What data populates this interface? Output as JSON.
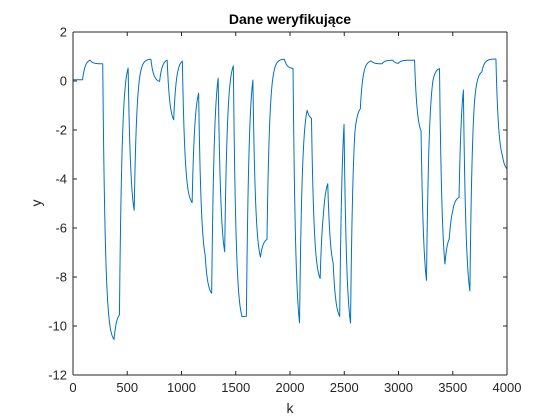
{
  "chart_data": {
    "type": "line",
    "title": "Dane weryfikujące",
    "xlabel": "k",
    "ylabel": "y",
    "xlim": [
      0,
      4000
    ],
    "ylim": [
      -12,
      2
    ],
    "xticks": [
      0,
      500,
      1000,
      1500,
      2000,
      2500,
      3000,
      3500,
      4000
    ],
    "yticks": [
      -12,
      -10,
      -8,
      -6,
      -4,
      -2,
      0,
      2
    ],
    "grid": false,
    "box": true,
    "series_color": "#0072BD",
    "settle_samples": 25,
    "series": [
      {
        "segments": [
          {
            "start": 0,
            "end": 90,
            "value": 0.05
          },
          {
            "start": 90,
            "end": 160,
            "value": 0.9
          },
          {
            "start": 160,
            "end": 275,
            "value": 0.7
          },
          {
            "start": 275,
            "end": 380,
            "value": -10.7
          },
          {
            "start": 380,
            "end": 430,
            "value": -9.4
          },
          {
            "start": 430,
            "end": 510,
            "value": 0.9
          },
          {
            "start": 510,
            "end": 565,
            "value": -5.9
          },
          {
            "start": 565,
            "end": 640,
            "value": 0.9
          },
          {
            "start": 640,
            "end": 720,
            "value": 0.9
          },
          {
            "start": 720,
            "end": 800,
            "value": -0.05
          },
          {
            "start": 800,
            "end": 870,
            "value": 0.9
          },
          {
            "start": 870,
            "end": 930,
            "value": -1.8
          },
          {
            "start": 930,
            "end": 1010,
            "value": 0.9
          },
          {
            "start": 1010,
            "end": 1100,
            "value": -5.1
          },
          {
            "start": 1100,
            "end": 1160,
            "value": -0.1
          },
          {
            "start": 1160,
            "end": 1220,
            "value": -7.7
          },
          {
            "start": 1220,
            "end": 1280,
            "value": -8.8
          },
          {
            "start": 1280,
            "end": 1340,
            "value": 0.9
          },
          {
            "start": 1340,
            "end": 1400,
            "value": -7.6
          },
          {
            "start": 1400,
            "end": 1480,
            "value": 0.9
          },
          {
            "start": 1480,
            "end": 1560,
            "value": -10.0
          },
          {
            "start": 1560,
            "end": 1600,
            "value": -9.6
          },
          {
            "start": 1600,
            "end": 1660,
            "value": 0.9
          },
          {
            "start": 1660,
            "end": 1730,
            "value": -7.6
          },
          {
            "start": 1730,
            "end": 1790,
            "value": -6.4
          },
          {
            "start": 1790,
            "end": 1950,
            "value": 0.9
          },
          {
            "start": 1950,
            "end": 2030,
            "value": 0.5
          },
          {
            "start": 2030,
            "end": 2090,
            "value": -10.8
          },
          {
            "start": 2090,
            "end": 2160,
            "value": -0.7
          },
          {
            "start": 2160,
            "end": 2200,
            "value": -1.6
          },
          {
            "start": 2200,
            "end": 2280,
            "value": -8.3
          },
          {
            "start": 2280,
            "end": 2310,
            "value": -4.4
          },
          {
            "start": 2310,
            "end": 2350,
            "value": -3.9
          },
          {
            "start": 2350,
            "end": 2400,
            "value": -7.9
          },
          {
            "start": 2400,
            "end": 2460,
            "value": -9.8
          },
          {
            "start": 2460,
            "end": 2500,
            "value": 0.05
          },
          {
            "start": 2500,
            "end": 2560,
            "value": -10.6
          },
          {
            "start": 2560,
            "end": 2600,
            "value": -0.3
          },
          {
            "start": 2600,
            "end": 2650,
            "value": -1.0
          },
          {
            "start": 2650,
            "end": 2750,
            "value": 0.85
          },
          {
            "start": 2750,
            "end": 2850,
            "value": 0.7
          },
          {
            "start": 2850,
            "end": 2950,
            "value": 0.85
          },
          {
            "start": 2950,
            "end": 3000,
            "value": 0.7
          },
          {
            "start": 3000,
            "end": 3150,
            "value": 0.85
          },
          {
            "start": 3150,
            "end": 3210,
            "value": -2.3
          },
          {
            "start": 3210,
            "end": 3260,
            "value": -9.0
          },
          {
            "start": 3260,
            "end": 3320,
            "value": 0.75
          },
          {
            "start": 3320,
            "end": 3380,
            "value": 0.55
          },
          {
            "start": 3380,
            "end": 3430,
            "value": -8.6
          },
          {
            "start": 3430,
            "end": 3470,
            "value": -6.2
          },
          {
            "start": 3470,
            "end": 3500,
            "value": -4.9
          },
          {
            "start": 3500,
            "end": 3560,
            "value": -4.7
          },
          {
            "start": 3560,
            "end": 3600,
            "value": 0.65
          },
          {
            "start": 3600,
            "end": 3660,
            "value": -9.3
          },
          {
            "start": 3660,
            "end": 3700,
            "value": 0.75
          },
          {
            "start": 3700,
            "end": 3770,
            "value": 0.45
          },
          {
            "start": 3770,
            "end": 3900,
            "value": 0.9
          },
          {
            "start": 3900,
            "end": 3960,
            "value": -3.4
          },
          {
            "start": 3960,
            "end": 4000,
            "value": -3.7
          }
        ]
      }
    ]
  }
}
